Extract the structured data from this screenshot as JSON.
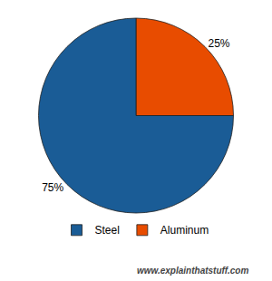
{
  "chart_data": {
    "type": "pie",
    "categories": [
      "Aluminum",
      "Steel"
    ],
    "values": [
      25,
      75
    ],
    "value_labels": [
      "25%",
      "75%"
    ],
    "colors": [
      "#e84c00",
      "#1a5c96"
    ],
    "data_labels": true,
    "legend": "bottom",
    "annotation": "www.explainthatstuff.com"
  }
}
